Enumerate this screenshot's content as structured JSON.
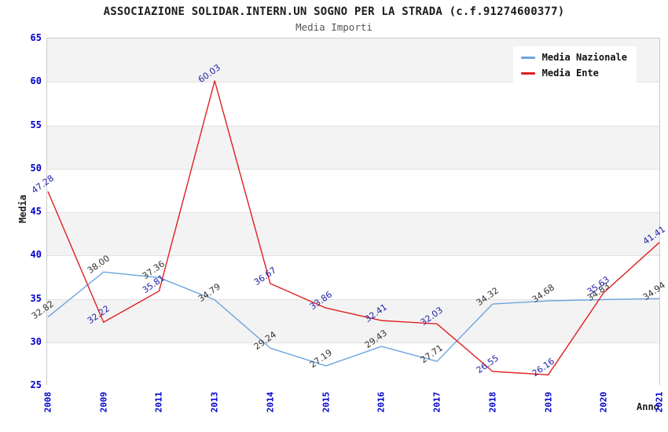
{
  "chart_data": {
    "type": "line",
    "title": "ASSOCIAZIONE SOLIDAR.INTERN.UN SOGNO PER LA STRADA (c.f.91274600377)",
    "subtitle": "Media Importi",
    "xlabel": "Anno",
    "ylabel": "Media",
    "x": [
      "2008",
      "2009",
      "2011",
      "2013",
      "2014",
      "2015",
      "2016",
      "2017",
      "2018",
      "2019",
      "2020",
      "2021"
    ],
    "series": [
      {
        "name": "Media Nazionale",
        "color": "#6CA6E0",
        "label_color": "#333333",
        "values": [
          32.82,
          38.0,
          37.36,
          34.79,
          29.24,
          27.19,
          29.43,
          27.71,
          34.32,
          34.68,
          34.83,
          34.94
        ]
      },
      {
        "name": "Media Ente",
        "color": "#E02020",
        "label_color": "#2222AA",
        "values": [
          47.28,
          32.22,
          35.81,
          60.03,
          36.67,
          33.86,
          32.41,
          32.03,
          26.55,
          26.16,
          35.63,
          41.41
        ]
      }
    ],
    "ylim": [
      25,
      65
    ],
    "ytick_step": 5,
    "yticks": [
      65,
      60,
      55,
      50,
      45,
      40,
      35,
      30,
      25
    ],
    "grid": "horizontal-bands",
    "legend_position": "top-right",
    "point_labels_shown": true,
    "colors": {
      "tick_text": "#0000CD",
      "band_fill": "#F3F3F3",
      "gridline": "#E2E2E2",
      "plot_border": "#CCCCCC",
      "background": "#FFFFFF"
    }
  }
}
